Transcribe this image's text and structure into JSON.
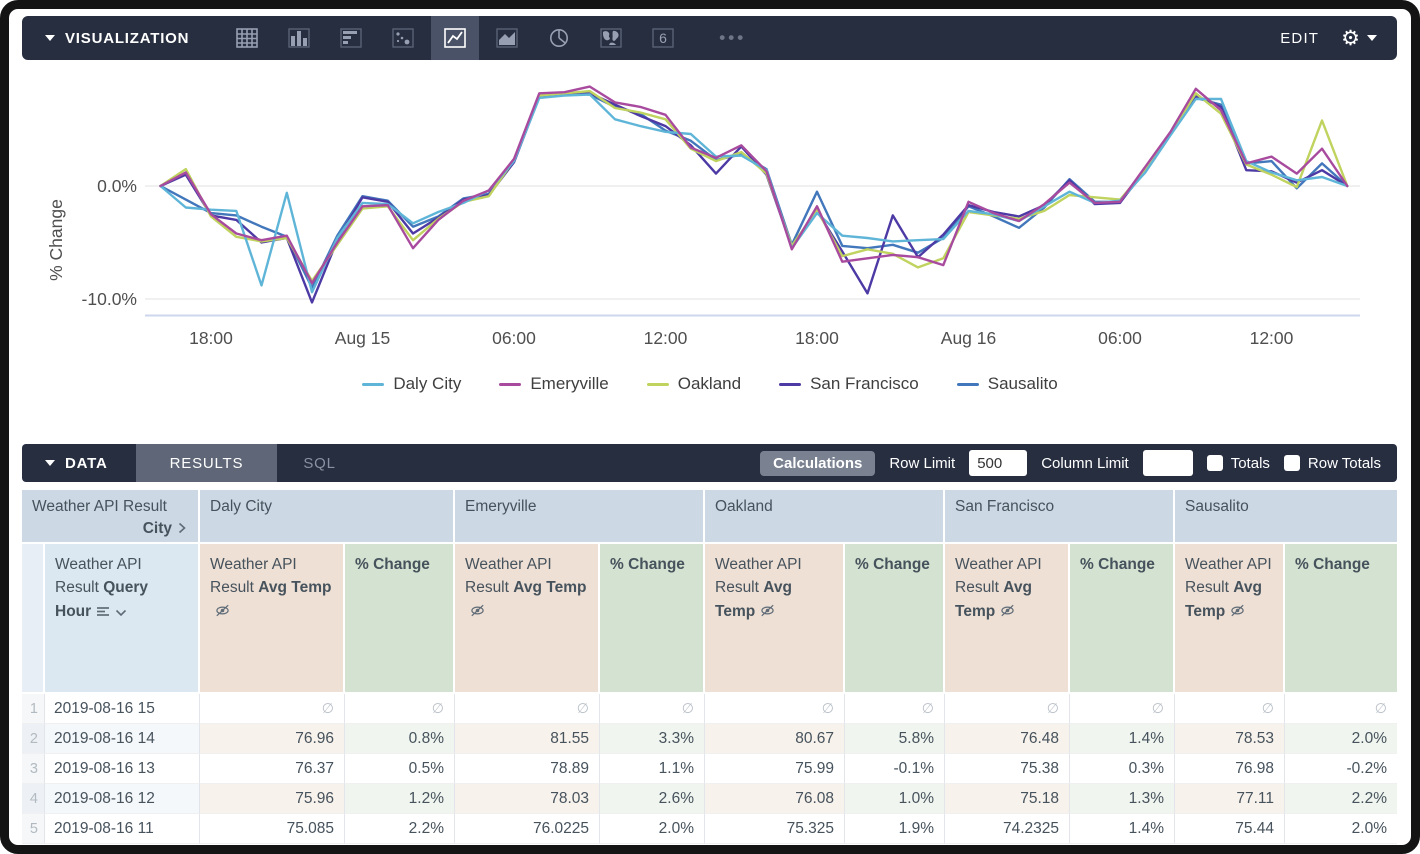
{
  "viz_bar": {
    "title": "VISUALIZATION",
    "edit_label": "EDIT",
    "more_label": "•••",
    "icons": [
      "table-viz-icon",
      "bar-chart-viz-icon",
      "horizontal-bar-viz-icon",
      "scatter-viz-icon",
      "line-chart-viz-icon",
      "area-chart-viz-icon",
      "pie-chart-viz-icon",
      "map-viz-icon",
      "single-value-viz-icon"
    ],
    "selected_icon": "line-chart-viz-icon",
    "single_value_glyph": "6",
    "gear_glyph": "⚙"
  },
  "data_bar": {
    "title": "DATA",
    "tabs": [
      "RESULTS",
      "SQL"
    ],
    "active_tab": "RESULTS",
    "calculations_label": "Calculations",
    "row_limit_label": "Row Limit",
    "row_limit_value": "500",
    "column_limit_label": "Column Limit",
    "column_limit_value": "",
    "totals_label": "Totals",
    "row_totals_label": "Row Totals"
  },
  "chart_data": {
    "type": "line",
    "ylabel": "% Change",
    "y_ticks": [
      {
        "label": "0.0%",
        "value": 0
      },
      {
        "label": "-10.0%",
        "value": -10
      }
    ],
    "ylim": [
      -11.5,
      10.5
    ],
    "x_tick_labels": [
      "18:00",
      "Aug 15",
      "06:00",
      "12:00",
      "18:00",
      "Aug 16",
      "06:00",
      "12:00"
    ],
    "grid": "horizontal-only",
    "legend_position": "bottom",
    "series": [
      {
        "name": "Daly City",
        "color": "#5fb5d8",
        "values": [
          0,
          -1.9,
          -2.1,
          -2.2,
          -8.8,
          -0.6,
          -9.4,
          -4.6,
          -1.5,
          -1.6,
          -3.3,
          -2.3,
          -1.5,
          -0.4,
          2.2,
          7.8,
          8.0,
          8.1,
          5.9,
          5.3,
          4.8,
          4.6,
          2.6,
          2.7,
          1.4,
          -5.5,
          -2.4,
          -4.4,
          -4.6,
          -4.9,
          -4.8,
          -4.7,
          -2.2,
          -2.5,
          -3.1,
          -1.8,
          -0.5,
          -1.5,
          -1.3,
          1.2,
          4.5,
          7.7,
          7.7,
          2.2,
          1.2,
          0.5,
          0.8,
          0
        ]
      },
      {
        "name": "Emeryville",
        "color": "#a84b9e",
        "values": [
          0,
          1.2,
          -2.5,
          -4.2,
          -4.8,
          -4.4,
          -8.6,
          -5.0,
          -1.8,
          -1.7,
          -5.5,
          -3.0,
          -1.3,
          -0.4,
          2.4,
          8.2,
          8.3,
          8.8,
          7.4,
          7.0,
          6.3,
          3.4,
          2.5,
          3.6,
          1.3,
          -5.6,
          -1.8,
          -6.7,
          -6.4,
          -6.1,
          -6.3,
          -7.0,
          -1.4,
          -2.4,
          -3.1,
          -1.6,
          0.3,
          -1.5,
          -1.4,
          1.7,
          4.8,
          8.6,
          6.7,
          2.0,
          2.6,
          1.1,
          3.3,
          0
        ]
      },
      {
        "name": "Oakland",
        "color": "#bfd35e",
        "values": [
          0,
          1.5,
          -2.7,
          -4.5,
          -4.9,
          -4.6,
          -8.4,
          -5.2,
          -2.0,
          -1.8,
          -4.8,
          -2.9,
          -1.4,
          -0.9,
          2.3,
          8.0,
          8.2,
          8.4,
          6.9,
          6.5,
          5.9,
          3.3,
          2.2,
          3.0,
          1.1,
          -5.3,
          -2.1,
          -6.2,
          -5.6,
          -6.0,
          -7.2,
          -6.4,
          -2.3,
          -2.6,
          -2.9,
          -2.2,
          -0.8,
          -1.0,
          -1.2,
          1.4,
          4.6,
          8.2,
          6.4,
          1.9,
          1.0,
          -0.1,
          5.8,
          0
        ]
      },
      {
        "name": "San Francisco",
        "color": "#4d3aa5",
        "values": [
          0,
          1.0,
          -2.6,
          -3.0,
          -5.0,
          -4.6,
          -10.3,
          -4.8,
          -1.0,
          -1.4,
          -4.2,
          -2.8,
          -1.2,
          -0.8,
          2.1,
          7.9,
          8.1,
          8.2,
          7.2,
          6.2,
          5.3,
          3.6,
          1.1,
          3.5,
          1.0,
          -5.4,
          -2.2,
          -5.8,
          -9.5,
          -2.6,
          -6.3,
          -4.3,
          -1.7,
          -2.3,
          -2.7,
          -1.7,
          0.5,
          -1.6,
          -1.5,
          1.5,
          4.7,
          8.0,
          7.0,
          1.4,
          1.3,
          0.3,
          1.4,
          0
        ]
      },
      {
        "name": "Sausalito",
        "color": "#4277bb",
        "values": [
          0,
          -1.2,
          -2.4,
          -2.6,
          -3.6,
          -4.5,
          -9.0,
          -4.4,
          -0.9,
          -1.3,
          -3.6,
          -2.7,
          -1.1,
          -0.7,
          2.2,
          8.0,
          8.2,
          8.1,
          7.0,
          6.4,
          4.9,
          4.0,
          2.3,
          2.8,
          1.5,
          -5.2,
          -0.5,
          -5.3,
          -5.5,
          -5.2,
          -5.9,
          -4.6,
          -1.8,
          -2.7,
          -3.7,
          -1.9,
          0.6,
          -1.4,
          -1.4,
          1.3,
          4.6,
          7.8,
          7.2,
          2.0,
          2.2,
          -0.2,
          2.0,
          0
        ]
      }
    ]
  },
  "table": {
    "dimension_header": {
      "line1": "Weather API Result",
      "line2_bold": "City"
    },
    "hour_header": {
      "prefix": "Weather API Result",
      "bold": "Query Hour"
    },
    "cities": [
      "Daly City",
      "Emeryville",
      "Oakland",
      "San Francisco",
      "Sausalito"
    ],
    "temp_header": {
      "prefix": "Weather API Result",
      "bold": "Avg Temp"
    },
    "change_header": {
      "bold": "% Change"
    },
    "null_symbol": "∅",
    "rows": [
      {
        "num": "1",
        "hour": "2019-08-16 15",
        "values": [
          "∅",
          "∅",
          "∅",
          "∅",
          "∅",
          "∅",
          "∅",
          "∅",
          "∅",
          "∅"
        ]
      },
      {
        "num": "2",
        "hour": "2019-08-16 14",
        "values": [
          "76.96",
          "0.8%",
          "81.55",
          "3.3%",
          "80.67",
          "5.8%",
          "76.48",
          "1.4%",
          "78.53",
          "2.0%"
        ]
      },
      {
        "num": "3",
        "hour": "2019-08-16 13",
        "values": [
          "76.37",
          "0.5%",
          "78.89",
          "1.1%",
          "75.99",
          "-0.1%",
          "75.38",
          "0.3%",
          "76.98",
          "-0.2%"
        ]
      },
      {
        "num": "4",
        "hour": "2019-08-16 12",
        "values": [
          "75.96",
          "1.2%",
          "78.03",
          "2.6%",
          "76.08",
          "1.0%",
          "75.18",
          "1.3%",
          "77.11",
          "2.2%"
        ]
      },
      {
        "num": "5",
        "hour": "2019-08-16 11",
        "values": [
          "75.085",
          "2.2%",
          "76.0225",
          "2.0%",
          "75.325",
          "1.9%",
          "74.2325",
          "1.4%",
          "75.44",
          "2.0%"
        ]
      }
    ]
  },
  "colors": {
    "bar_background": "#272e40",
    "selected_icon_background": "#4a5268",
    "icon_gray": "#97a0b2",
    "active_tab_background": "#5e6677",
    "group_header_background": "#ccd8e4",
    "hour_header_background": "#dbe7f1",
    "temp_header_background": "#eee0d5",
    "change_header_background": "#d4e3d1",
    "gridline": "#e8e8e8",
    "axis_line": "#ccd6ec"
  }
}
